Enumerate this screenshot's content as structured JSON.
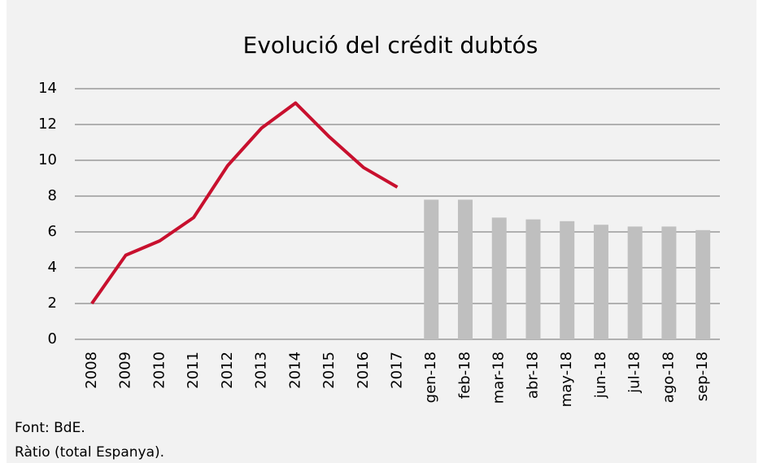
{
  "chart_data": {
    "type": "bar-line",
    "title": "Evolució del crédit dubtós",
    "categories": [
      "2008",
      "2009",
      "2010",
      "2011",
      "2012",
      "2013",
      "2014",
      "2015",
      "2016",
      "2017",
      "gen-18",
      "feb-18",
      "mar-18",
      "abr-18",
      "may-18",
      "jun-18",
      "jul-18",
      "ago-18",
      "sep-18"
    ],
    "series": [
      {
        "type": "line",
        "color": "#c8102e",
        "values": [
          2.0,
          4.7,
          5.5,
          6.8,
          9.7,
          11.8,
          13.2,
          11.3,
          9.6,
          8.5,
          null,
          null,
          null,
          null,
          null,
          null,
          null,
          null,
          null
        ]
      },
      {
        "type": "bar",
        "color": "#bfbfbf",
        "values": [
          null,
          null,
          null,
          null,
          null,
          null,
          null,
          null,
          null,
          null,
          7.8,
          7.8,
          6.8,
          6.7,
          6.6,
          6.4,
          6.3,
          6.3,
          6.1
        ]
      }
    ],
    "ylim": [
      0,
      14
    ],
    "yticks": [
      0,
      2,
      4,
      6,
      8,
      10,
      12,
      14
    ],
    "grid": true,
    "notes": [
      "Font: BdE.",
      "Ràtio (total Espanya)."
    ]
  }
}
